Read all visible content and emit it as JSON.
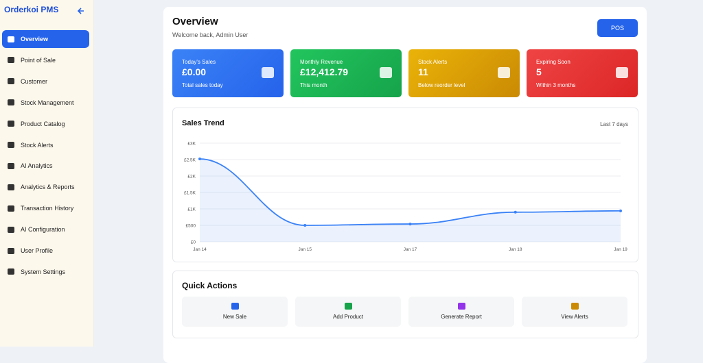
{
  "sidebar": {
    "brand": "Orderkoi PMS",
    "items": [
      "Overview",
      "Point of Sale",
      "Customer",
      "Stock Management",
      "Product Catalog",
      "Stock Alerts",
      "AI Analytics",
      "Analytics & Reports",
      "Transaction History",
      "AI Configuration",
      "User Profile",
      "System Settings"
    ]
  },
  "header": {
    "title": "Overview",
    "subtitle": "Welcome back, Admin User",
    "button": "POS"
  },
  "stats": [
    {
      "label": "Today's Sales",
      "value": "£0.00",
      "note": "Total sales today"
    },
    {
      "label": "Monthly Revenue",
      "value": "£12,412.79",
      "note": "This month"
    },
    {
      "label": "Stock Alerts",
      "value": "11",
      "note": "Below reorder level"
    },
    {
      "label": "Expiring Soon",
      "value": "5",
      "note": "Within 3 months"
    }
  ],
  "chart_data": {
    "type": "line",
    "title": "Sales Trend",
    "subtitle": "Last 7 days",
    "categories": [
      "Jan 14",
      "Jan 15",
      "Jan 17",
      "Jan 18",
      "Jan 19"
    ],
    "values": [
      2520,
      500,
      540,
      900,
      940
    ],
    "color": "#3b82f6",
    "ylim": [
      0,
      3000
    ],
    "yticks": [
      {
        "value": 0,
        "label": "£0"
      },
      {
        "value": 500,
        "label": "£500"
      },
      {
        "value": 1000,
        "label": "£1K"
      },
      {
        "value": 1500,
        "label": "£1.5K"
      },
      {
        "value": 2000,
        "label": "£2K"
      },
      {
        "value": 2500,
        "label": "£2.5K"
      },
      {
        "value": 3000,
        "label": "£3K"
      }
    ],
    "grid": true
  },
  "quick_actions": {
    "title": "Quick Actions",
    "items": [
      "New Sale",
      "Add Product",
      "Generate Report",
      "View Alerts"
    ]
  }
}
